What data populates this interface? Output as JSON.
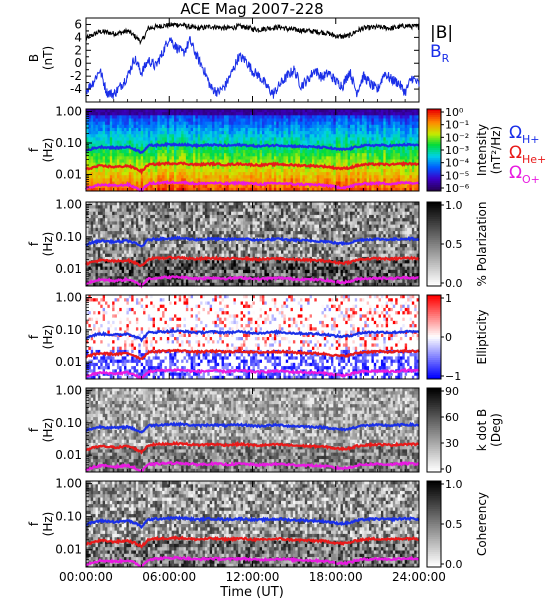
{
  "title": "ACE Mag 2007-228",
  "xlabel": "Time (UT)",
  "x_ticks": [
    "00:00:00",
    "06:00:00",
    "12:00:00",
    "18:00:00",
    "24:00:00"
  ],
  "x_range_hours": [
    0,
    24
  ],
  "gyro_labels": {
    "h": {
      "main": "Ω",
      "sub": "H+",
      "color": "#1a2fe8"
    },
    "he": {
      "main": "Ω",
      "sub": "He+",
      "color": "#e81a1a"
    },
    "o": {
      "main": "Ω",
      "sub": "O+",
      "color": "#e81ae0"
    }
  },
  "freq_ticks": [
    "1.00",
    "0.10",
    "0.01"
  ],
  "freq_range_hz": [
    0.003,
    1.2
  ],
  "chart_data": [
    {
      "type": "line",
      "panel": "B",
      "ylabel": "B",
      "yunit": "(nT)",
      "ylim": [
        -6,
        7
      ],
      "y_ticks": [
        "6",
        "4",
        "2",
        "0",
        "-2",
        "-4"
      ],
      "series": [
        {
          "name": "|B|",
          "color": "#000000",
          "color_name": "black",
          "x": [
            0,
            0.5,
            1,
            1.5,
            2,
            2.5,
            3,
            3.5,
            4,
            4.5,
            5,
            5.5,
            6,
            6.5,
            7,
            7.5,
            8,
            8.5,
            9,
            9.5,
            10,
            10.5,
            11,
            11.5,
            12,
            12.5,
            13,
            13.5,
            14,
            14.5,
            15,
            15.5,
            16,
            16.5,
            17,
            17.5,
            18,
            18.5,
            19,
            19.5,
            20,
            20.5,
            21,
            21.5,
            22,
            22.5,
            23,
            23.5,
            24
          ],
          "values": [
            3.8,
            4.4,
            4.9,
            4.8,
            4.6,
            4.7,
            5.0,
            4.2,
            3.3,
            5.4,
            5.6,
            5.8,
            5.9,
            6.0,
            5.9,
            5.6,
            5.4,
            5.5,
            5.7,
            5.6,
            5.4,
            5.5,
            5.7,
            5.6,
            5.3,
            5.2,
            5.4,
            5.5,
            5.6,
            5.3,
            5.2,
            5.1,
            5.0,
            4.9,
            4.8,
            4.6,
            4.2,
            4.1,
            4.3,
            5.0,
            5.4,
            5.5,
            5.6,
            5.5,
            5.4,
            5.6,
            5.8,
            5.7,
            5.6
          ]
        },
        {
          "name": "B",
          "name_sub": "R",
          "color": "#1a2fe8",
          "color_name": "blue",
          "x": [
            0,
            0.5,
            1,
            1.5,
            2,
            2.5,
            3,
            3.5,
            4,
            4.5,
            5,
            5.5,
            6,
            6.5,
            7,
            7.5,
            8,
            8.5,
            9,
            9.5,
            10,
            10.5,
            11,
            11.5,
            12,
            12.5,
            13,
            13.5,
            14,
            14.5,
            15,
            15.5,
            16,
            16.5,
            17,
            17.5,
            18,
            18.5,
            19,
            19.5,
            20,
            20.5,
            21,
            21.5,
            22,
            22.5,
            23,
            23.5,
            24
          ],
          "values": [
            -4.2,
            -3.0,
            -1.0,
            -4.5,
            -4.8,
            -3.5,
            -2.0,
            0.8,
            -1.5,
            0.5,
            -0.5,
            1.5,
            4.0,
            2.5,
            1.5,
            3.5,
            1.0,
            -1.0,
            -3.8,
            -4.5,
            -3.6,
            -1.5,
            1.0,
            0.5,
            -1.2,
            -2.0,
            -3.5,
            -4.8,
            -3.2,
            -2.0,
            -1.0,
            -3.5,
            -2.5,
            -1.0,
            -2.2,
            -1.5,
            -2.8,
            -3.5,
            -1.2,
            -4.5,
            -2.0,
            -3.2,
            -4.2,
            -1.5,
            -2.5,
            -3.0,
            -4.5,
            -2.2,
            -3.3
          ]
        }
      ]
    },
    {
      "type": "heatmap",
      "panel": "Intensity",
      "ylabel": "f",
      "yunit": "(Hz)",
      "colorbar": {
        "label": "Intensity",
        "unit": "(nT²/Hz)",
        "ticks": [
          "10⁰",
          "10⁻¹",
          "10⁻²",
          "10⁻³",
          "10⁻⁴",
          "10⁻⁵",
          "10⁻⁶"
        ],
        "colormap": "rainbow"
      }
    },
    {
      "type": "heatmap",
      "panel": "Polarization",
      "ylabel": "f",
      "yunit": "(Hz)",
      "colorbar": {
        "label": "% Polarization",
        "ticks": [
          "1.0",
          "0.5",
          "0.0"
        ],
        "colormap": "gray"
      }
    },
    {
      "type": "heatmap",
      "panel": "Ellipticity",
      "ylabel": "f",
      "yunit": "(Hz)",
      "colorbar": {
        "label": "Ellipticity",
        "ticks": [
          "1",
          "0",
          "−1"
        ],
        "colormap": "blue-white-red"
      }
    },
    {
      "type": "heatmap",
      "panel": "k dot B",
      "ylabel": "f",
      "yunit": "(Hz)",
      "colorbar": {
        "label": "k dot B",
        "unit": "(Deg)",
        "ticks": [
          "90",
          "60",
          "30",
          "0"
        ],
        "colormap": "gray"
      }
    },
    {
      "type": "heatmap",
      "panel": "Coherency",
      "ylabel": "f",
      "yunit": "(Hz)",
      "colorbar": {
        "label": "Coherency",
        "ticks": [
          "1.0",
          "0.5",
          "0.0"
        ],
        "colormap": "gray"
      }
    }
  ],
  "gyrofrequency_lines": {
    "x": [
      0,
      0.5,
      1,
      1.5,
      2,
      2.5,
      3,
      3.5,
      4,
      4.5,
      5,
      5.5,
      6,
      6.5,
      7,
      7.5,
      8,
      8.5,
      9,
      9.5,
      10,
      10.5,
      11,
      11.5,
      12,
      12.5,
      13,
      13.5,
      14,
      14.5,
      15,
      15.5,
      16,
      16.5,
      17,
      17.5,
      18,
      18.5,
      19,
      19.5,
      20,
      20.5,
      21,
      21.5,
      22,
      22.5,
      23,
      23.5,
      24
    ],
    "H+": [
      0.058,
      0.067,
      0.075,
      0.073,
      0.07,
      0.071,
      0.076,
      0.064,
      0.05,
      0.082,
      0.085,
      0.088,
      0.09,
      0.091,
      0.09,
      0.085,
      0.082,
      0.084,
      0.087,
      0.085,
      0.082,
      0.084,
      0.087,
      0.085,
      0.081,
      0.079,
      0.082,
      0.084,
      0.085,
      0.081,
      0.079,
      0.078,
      0.076,
      0.075,
      0.073,
      0.07,
      0.064,
      0.062,
      0.065,
      0.076,
      0.082,
      0.084,
      0.085,
      0.084,
      0.082,
      0.085,
      0.088,
      0.087,
      0.085
    ],
    "He+": [
      0.0145,
      0.0168,
      0.0187,
      0.0183,
      0.0175,
      0.0178,
      0.019,
      0.016,
      0.0125,
      0.0205,
      0.0213,
      0.022,
      0.0225,
      0.0228,
      0.0225,
      0.0213,
      0.0205,
      0.021,
      0.0218,
      0.0213,
      0.0205,
      0.021,
      0.0218,
      0.0213,
      0.0203,
      0.0198,
      0.0205,
      0.021,
      0.0213,
      0.0203,
      0.0198,
      0.0195,
      0.019,
      0.0187,
      0.0183,
      0.0175,
      0.016,
      0.0155,
      0.0163,
      0.019,
      0.0205,
      0.021,
      0.0213,
      0.021,
      0.0205,
      0.0213,
      0.022,
      0.0218,
      0.0213
    ],
    "O+": [
      0.0036,
      0.0042,
      0.0047,
      0.0046,
      0.0044,
      0.0045,
      0.0048,
      0.004,
      0.0031,
      0.0051,
      0.0053,
      0.0055,
      0.0056,
      0.0057,
      0.0056,
      0.0053,
      0.0051,
      0.0052,
      0.0054,
      0.0053,
      0.0051,
      0.0052,
      0.0054,
      0.0053,
      0.0051,
      0.0049,
      0.0051,
      0.0052,
      0.0053,
      0.0051,
      0.0049,
      0.0049,
      0.0048,
      0.0047,
      0.0046,
      0.0044,
      0.004,
      0.0039,
      0.0041,
      0.0048,
      0.0051,
      0.0052,
      0.0053,
      0.0052,
      0.0051,
      0.0053,
      0.0055,
      0.0054,
      0.0053
    ]
  }
}
